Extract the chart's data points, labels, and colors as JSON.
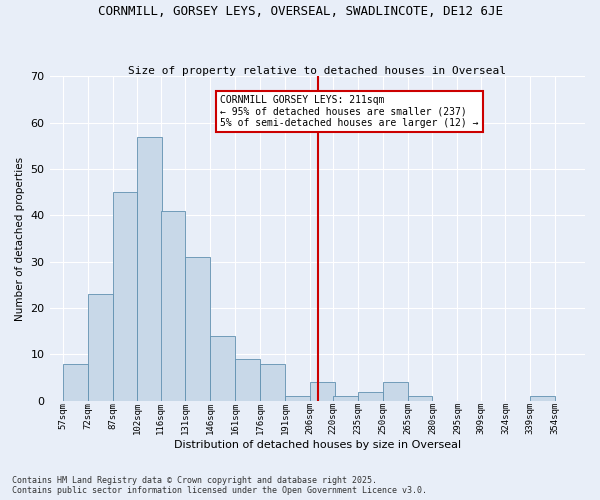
{
  "title": "CORNMILL, GORSEY LEYS, OVERSEAL, SWADLINCOTE, DE12 6JE",
  "subtitle": "Size of property relative to detached houses in Overseal",
  "xlabel": "Distribution of detached houses by size in Overseal",
  "ylabel": "Number of detached properties",
  "bar_color": "#c8d8e8",
  "bar_edge_color": "#6090b0",
  "background_color": "#e8eef8",
  "grid_color": "#ffffff",
  "vline_color": "#cc0000",
  "vline_x": 211,
  "annotation_title": "CORNMILL GORSEY LEYS: 211sqm",
  "annotation_line1": "← 95% of detached houses are smaller (237)",
  "annotation_line2": "5% of semi-detached houses are larger (12) →",
  "annotation_box_color": "#ffffff",
  "annotation_box_edge": "#cc0000",
  "footnote1": "Contains HM Land Registry data © Crown copyright and database right 2025.",
  "footnote2": "Contains public sector information licensed under the Open Government Licence v3.0.",
  "categories": [
    "57sqm",
    "72sqm",
    "87sqm",
    "102sqm",
    "116sqm",
    "131sqm",
    "146sqm",
    "161sqm",
    "176sqm",
    "191sqm",
    "206sqm",
    "220sqm",
    "235sqm",
    "250sqm",
    "265sqm",
    "280sqm",
    "295sqm",
    "309sqm",
    "324sqm",
    "339sqm",
    "354sqm"
  ],
  "bin_starts": [
    57,
    72,
    87,
    102,
    116,
    131,
    146,
    161,
    176,
    191,
    206,
    220,
    235,
    250,
    265,
    280,
    295,
    309,
    324,
    339,
    354
  ],
  "bin_width": 15,
  "values": [
    8,
    23,
    45,
    57,
    41,
    31,
    14,
    9,
    8,
    1,
    4,
    1,
    2,
    4,
    1,
    0,
    0,
    0,
    0,
    1,
    0
  ],
  "ylim": [
    0,
    70
  ],
  "yticks": [
    0,
    10,
    20,
    30,
    40,
    50,
    60,
    70
  ],
  "xlim_min": 49,
  "xlim_max": 372
}
